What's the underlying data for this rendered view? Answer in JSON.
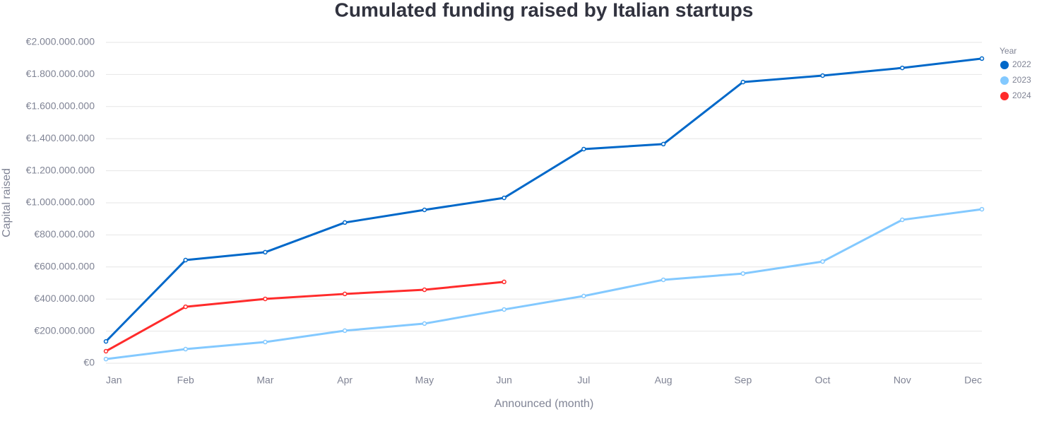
{
  "chart_data": {
    "type": "line",
    "title": "Cumulated funding raised by Italian startups",
    "x_label": "Announced (month)",
    "y_label": "Capital raised",
    "legend_title": "Year",
    "legend_position": "right",
    "grid": true,
    "categories": [
      "Jan",
      "Feb",
      "Mar",
      "Apr",
      "May",
      "Jun",
      "Jul",
      "Aug",
      "Sep",
      "Oct",
      "Nov",
      "Dec"
    ],
    "series": [
      {
        "name": "2022",
        "color": "#0068c9",
        "values": [
          136000000,
          643000000,
          692000000,
          877000000,
          956000000,
          1031000000,
          1335000000,
          1366000000,
          1753000000,
          1793000000,
          1841000000,
          1899000000
        ]
      },
      {
        "name": "2023",
        "color": "#83c9ff",
        "values": [
          26000000,
          88000000,
          132000000,
          203000000,
          247000000,
          335000000,
          419000000,
          520000000,
          559000000,
          634000000,
          894000000,
          960000000
        ]
      },
      {
        "name": "2024",
        "color": "#ff2b2b",
        "values": [
          75000000,
          352000000,
          401000000,
          432000000,
          458000000,
          507000000,
          null,
          null,
          null,
          null,
          null,
          null
        ]
      }
    ],
    "ylim": [
      0,
      2000000000
    ],
    "yticks": [
      {
        "value": 0,
        "label": "€0"
      },
      {
        "value": 200000000,
        "label": "€200.000.000"
      },
      {
        "value": 400000000,
        "label": "€400.000.000"
      },
      {
        "value": 600000000,
        "label": "€600.000.000"
      },
      {
        "value": 800000000,
        "label": "€800.000.000"
      },
      {
        "value": 1000000000,
        "label": "€1.000.000.000"
      },
      {
        "value": 1200000000,
        "label": "€1.200.000.000"
      },
      {
        "value": 1400000000,
        "label": "€1.400.000.000"
      },
      {
        "value": 1600000000,
        "label": "€1.600.000.000"
      },
      {
        "value": 1800000000,
        "label": "€1.800.000.000"
      },
      {
        "value": 2000000000,
        "label": "€2.000.000.000"
      }
    ]
  }
}
